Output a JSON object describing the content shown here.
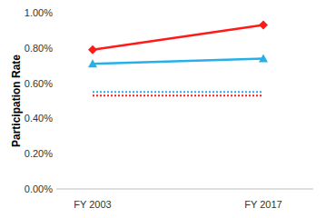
{
  "chart_data": {
    "type": "line",
    "y_label": "Participation Rate",
    "categories": [
      "FY 2003",
      "FY 2017"
    ],
    "series": [
      {
        "color": "#ff1a1a",
        "marker": "diamond",
        "line_style": "solid",
        "values": [
          0.79,
          0.93
        ]
      },
      {
        "color": "#27b0e8",
        "marker": "triangle",
        "line_style": "solid",
        "values": [
          0.71,
          0.74
        ]
      },
      {
        "color": "#27b0e8",
        "marker": "none",
        "line_style": "dotted",
        "values": [
          0.55,
          0.55
        ]
      },
      {
        "color": "#ff1a1a",
        "marker": "none",
        "line_style": "dotted",
        "values": [
          0.53,
          0.53
        ]
      }
    ],
    "ylim": [
      0,
      1
    ],
    "yticks": [
      {
        "value": 0,
        "label": "0.00%"
      },
      {
        "value": 0.2,
        "label": "0.20%"
      },
      {
        "value": 0.4,
        "label": "0.40%"
      },
      {
        "value": 0.6,
        "label": "0.60%"
      },
      {
        "value": 0.8,
        "label": "0.80%"
      },
      {
        "value": 1,
        "label": "1.00%"
      }
    ],
    "grid": false
  }
}
